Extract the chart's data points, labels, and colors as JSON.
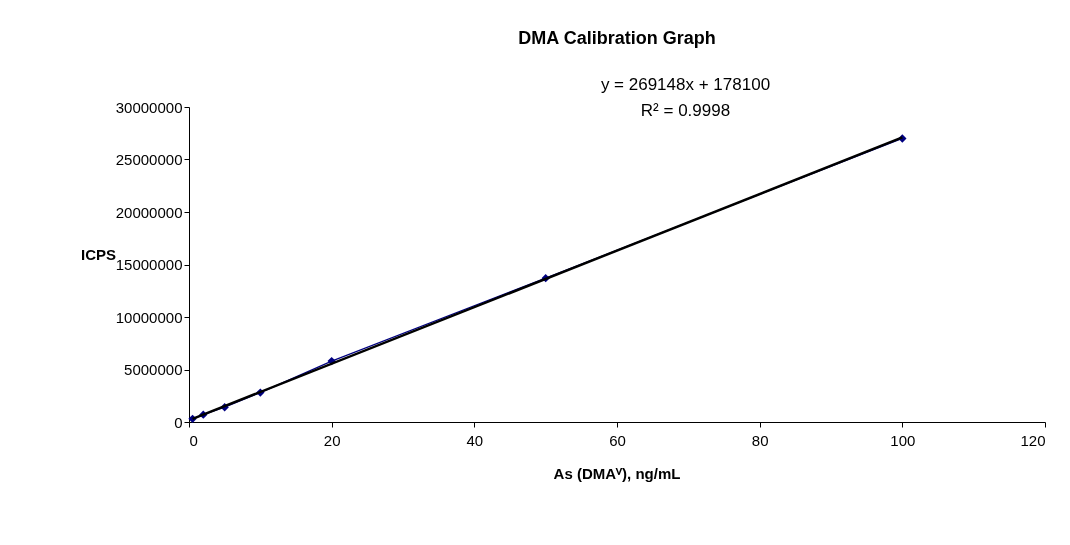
{
  "chart_data": {
    "type": "line",
    "title": "DMA Calibration Graph",
    "xlabel": "As (DMAⱽ), ng/mL",
    "ylabel": "ICPS",
    "xlim": [
      0,
      120
    ],
    "xticks": [
      0,
      20,
      40,
      60,
      80,
      100,
      120
    ],
    "ylim": [
      0,
      30000000
    ],
    "yticks": [
      0,
      5000000,
      10000000,
      15000000,
      20000000,
      25000000,
      30000000
    ],
    "grid": false,
    "legend": false,
    "series": [
      {
        "marker": "diamond",
        "color": "#000080",
        "x": [
          0.5,
          2,
          5,
          10,
          20,
          50,
          100
        ],
        "values": [
          300000,
          700000,
          1400000,
          2800000,
          5800000,
          13700000,
          27000000
        ]
      },
      {
        "marker": "none",
        "color": "#000000",
        "x": [
          0.5,
          100
        ],
        "values": [
          300000,
          27100000
        ]
      }
    ],
    "annotations": [
      "y = 269148x + 178100",
      "R² = 0.9998"
    ]
  }
}
